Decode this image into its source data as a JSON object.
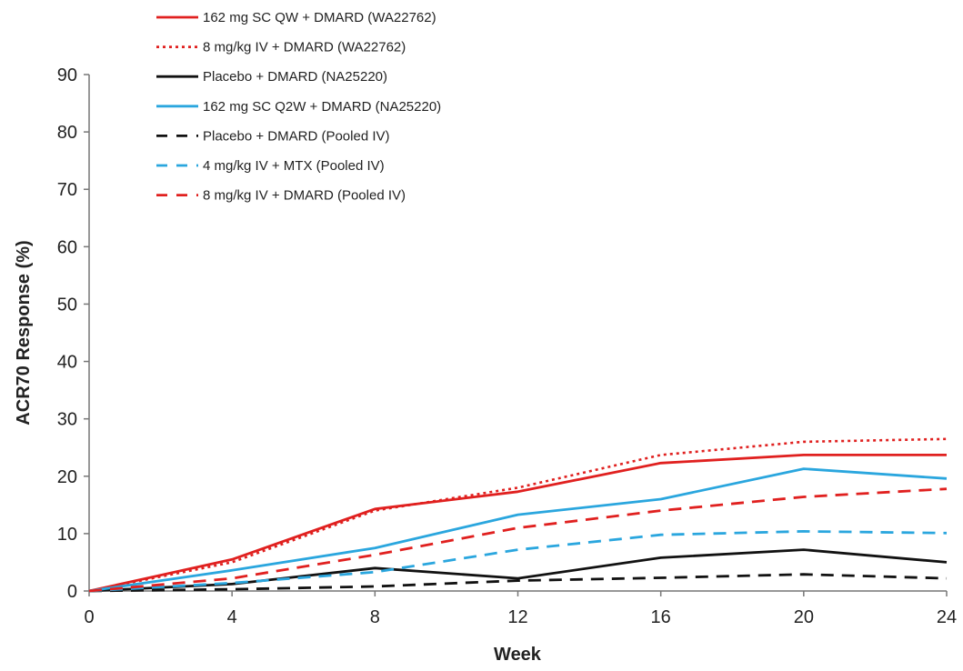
{
  "chart_data": {
    "type": "line",
    "title": "",
    "xlabel": "Week",
    "ylabel": "ACR70 Response (%)",
    "xlim": [
      0,
      24
    ],
    "ylim": [
      0,
      90
    ],
    "x_ticks": [
      "0",
      "4",
      "8",
      "12",
      "16",
      "20",
      "24"
    ],
    "y_ticks": [
      "0",
      "10",
      "20",
      "30",
      "40",
      "50",
      "60",
      "70",
      "80",
      "90"
    ],
    "grid": false,
    "legend_position": "top-left",
    "x": [
      0,
      4,
      8,
      12,
      16,
      20,
      24
    ],
    "series": [
      {
        "name": "162 mg SC QW + DMARD (WA22762)",
        "color": "#e0201f",
        "style": "solid",
        "values": [
          0,
          5.5,
          14.3,
          17.3,
          22.3,
          23.7,
          23.7
        ]
      },
      {
        "name": "8 mg/kg IV + DMARD (WA22762)",
        "color": "#e0201f",
        "style": "dotted",
        "values": [
          0,
          5.0,
          14.0,
          18.0,
          23.7,
          26.0,
          26.5
        ]
      },
      {
        "name": "Placebo + DMARD (NA25220)",
        "color": "#111111",
        "style": "solid",
        "values": [
          0,
          1.2,
          4.0,
          2.2,
          5.8,
          7.2,
          5.0
        ]
      },
      {
        "name": "162 mg SC Q2W + DMARD (NA25220)",
        "color": "#2aa6de",
        "style": "solid",
        "values": [
          0,
          3.6,
          7.5,
          13.3,
          16.0,
          21.3,
          19.6
        ]
      },
      {
        "name": "Placebo + DMARD (Pooled IV)",
        "color": "#111111",
        "style": "dashed",
        "values": [
          0,
          0.3,
          0.8,
          1.8,
          2.3,
          2.9,
          2.2
        ]
      },
      {
        "name": "4 mg/kg IV + MTX (Pooled IV)",
        "color": "#2aa6de",
        "style": "dashed",
        "values": [
          0,
          1.4,
          3.3,
          7.2,
          9.8,
          10.4,
          10.1
        ]
      },
      {
        "name": "8 mg/kg IV + DMARD (Pooled IV)",
        "color": "#e0201f",
        "style": "dashed",
        "values": [
          0,
          2.2,
          6.3,
          11.0,
          14.0,
          16.4,
          17.8
        ]
      }
    ]
  }
}
